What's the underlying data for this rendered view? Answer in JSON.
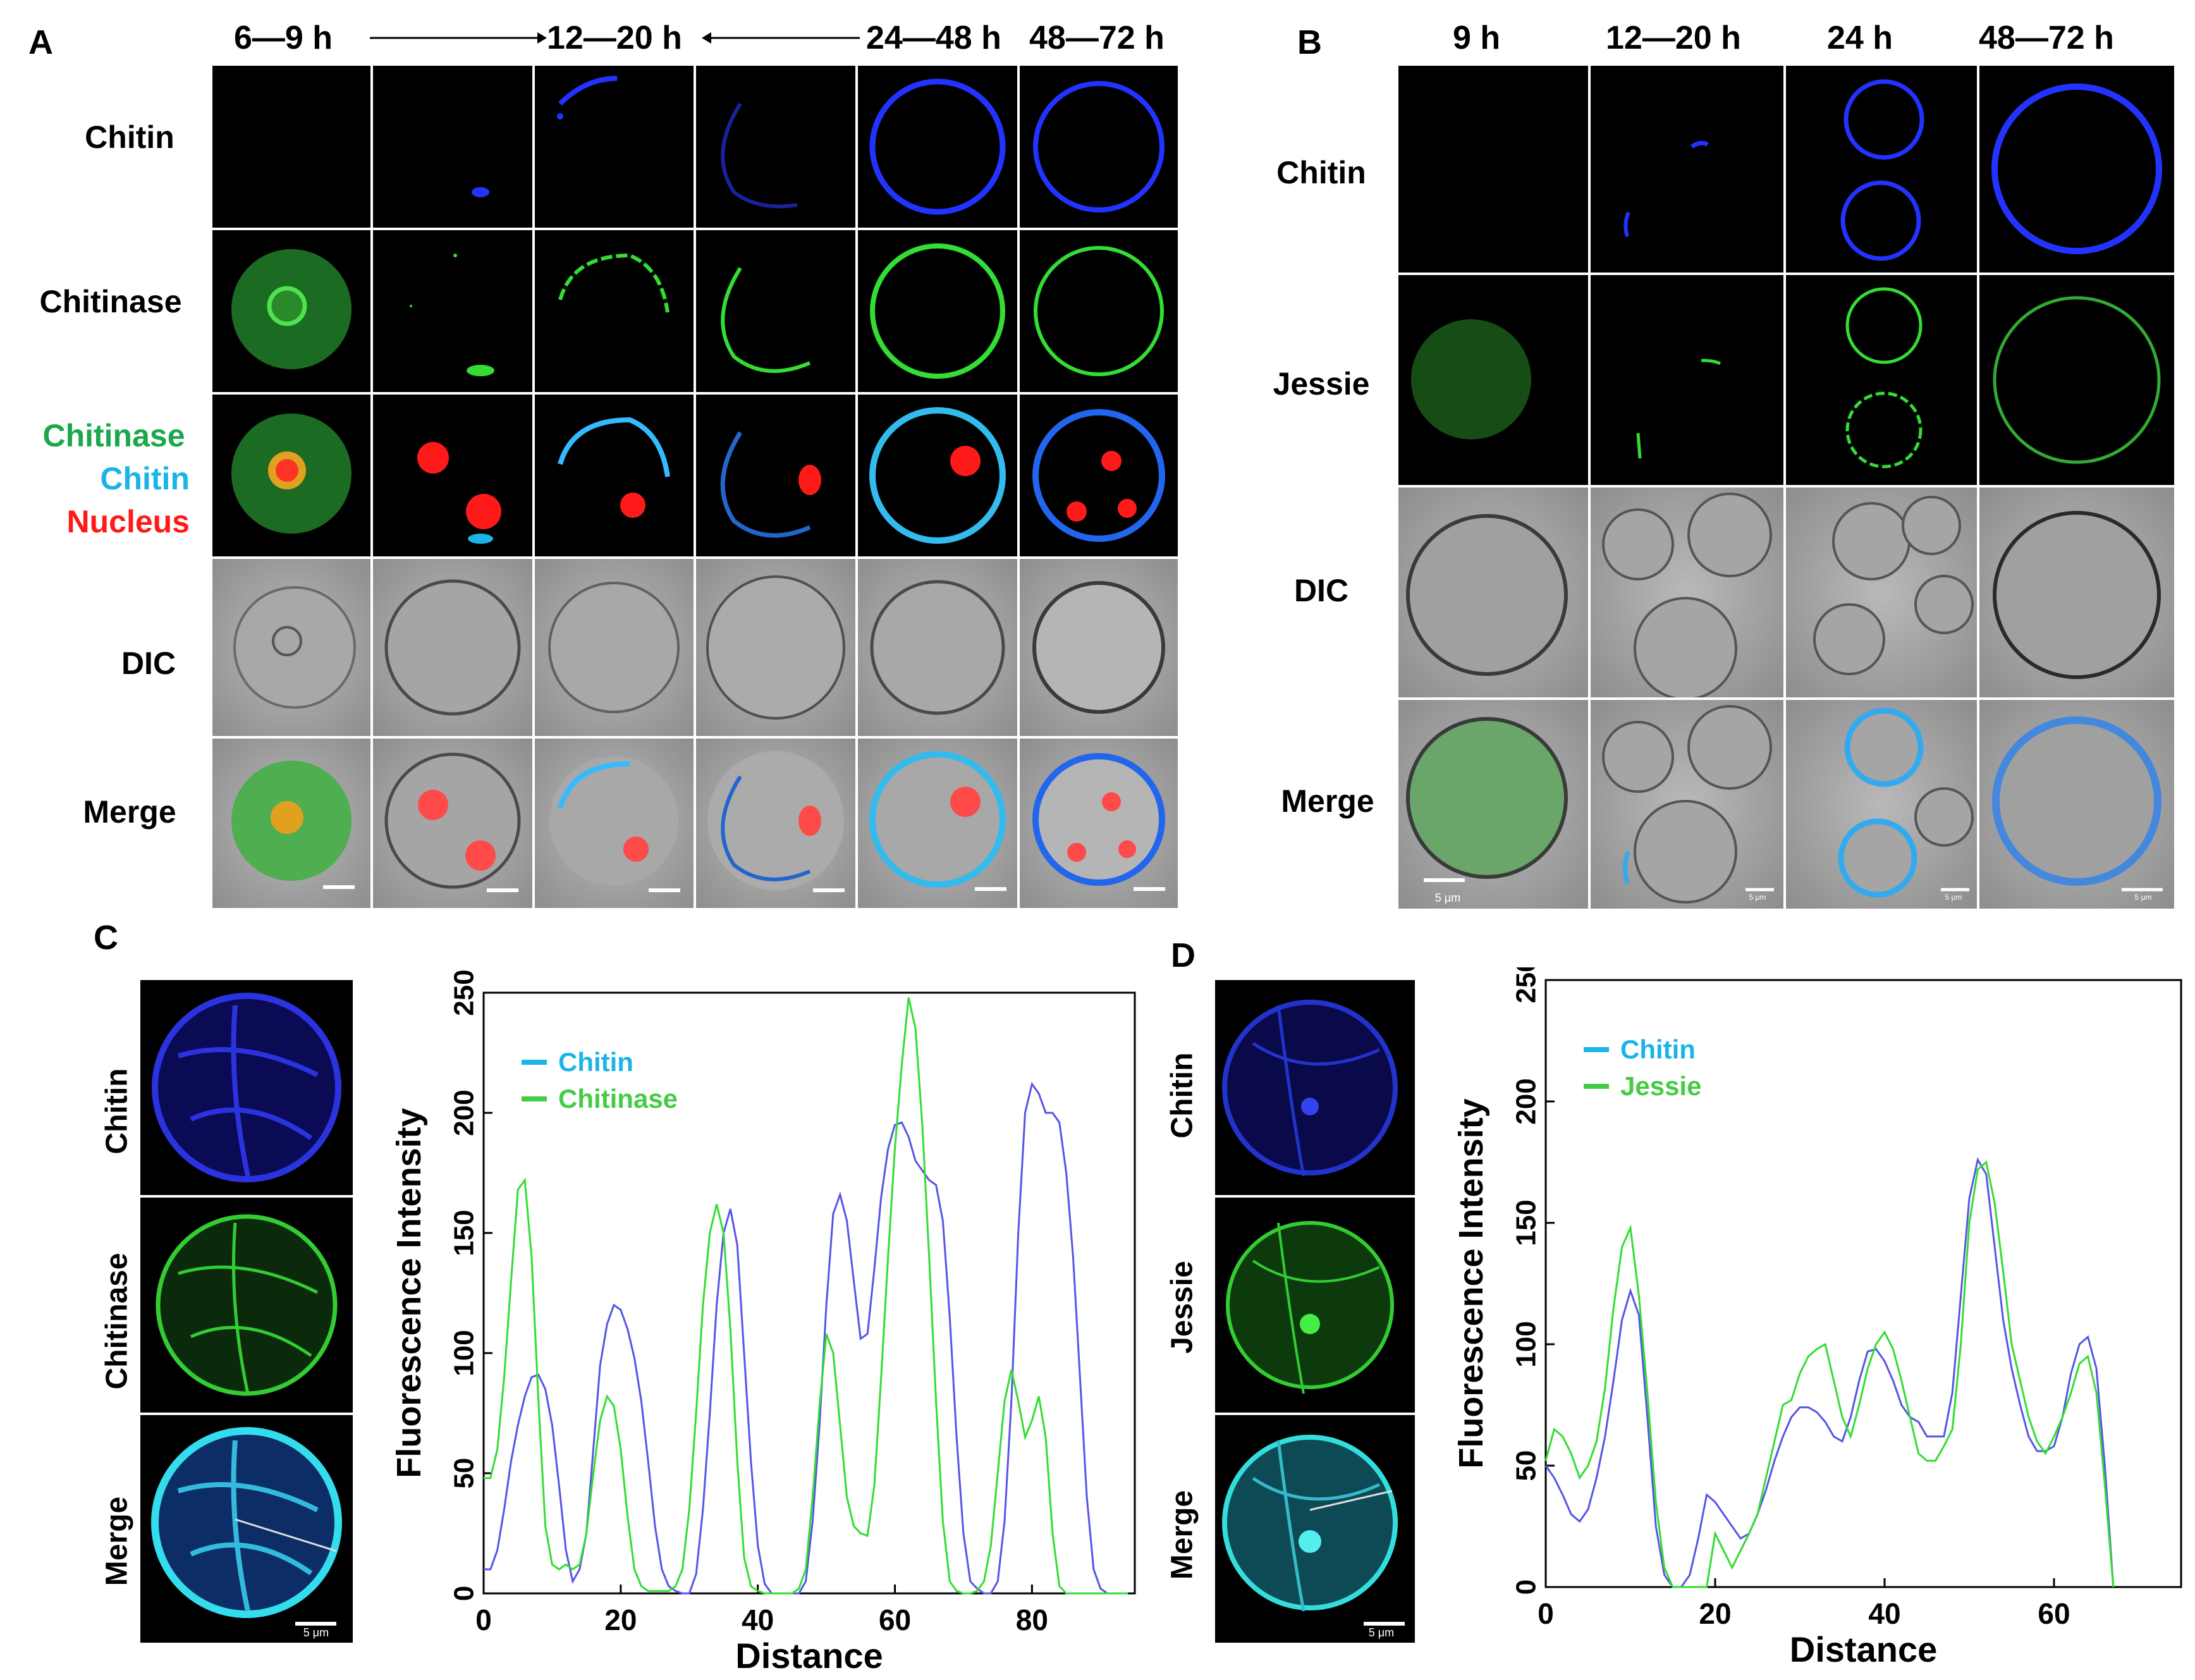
{
  "panelA": {
    "label": "A",
    "headers": [
      "6—9 h",
      "12—20 h",
      "24—48 h",
      "48—72 h"
    ],
    "rows": [
      "Chitin",
      "Chitinase",
      "DIC",
      "Merge"
    ],
    "legend_lines": [
      "Chitinase",
      "Chitin",
      "Nucleus"
    ],
    "colors": {
      "chitinase": "#1aa84a",
      "chitin": "#1ab4e6",
      "nucleus": "#ff1a1a"
    }
  },
  "panelB": {
    "label": "B",
    "headers": [
      "9 h",
      "12—20 h",
      "24 h",
      "48—72 h"
    ],
    "rows": [
      "Chitin",
      "Jessie",
      "DIC",
      "Merge"
    ],
    "scales": [
      "5 μm",
      "5 μm",
      "5 μm",
      "5 μm"
    ]
  },
  "panelC": {
    "label": "C",
    "image_labels": [
      "Chitin",
      "Chitinase",
      "Merge"
    ],
    "scale": "5 μm"
  },
  "panelD": {
    "label": "D",
    "image_labels": [
      "Chitin",
      "Jessie",
      "Merge"
    ],
    "scale": "5 μm"
  },
  "chart_data": [
    {
      "type": "line",
      "panel": "C",
      "xlabel": "Distance",
      "ylabel": "Fluorescence Intensity",
      "xlim": [
        0,
        95
      ],
      "ylim": [
        0,
        250
      ],
      "xticks": [
        0,
        20,
        40,
        60,
        80
      ],
      "yticks": [
        0,
        50,
        100,
        150,
        200,
        250
      ],
      "legend_position": "top-left",
      "series": [
        {
          "name": "Chitin",
          "color": "#5555e6",
          "x": [
            0,
            1,
            2,
            3,
            4,
            5,
            6,
            7,
            8,
            9,
            10,
            11,
            12,
            13,
            14,
            15,
            16,
            17,
            18,
            19,
            20,
            21,
            22,
            23,
            24,
            25,
            26,
            27,
            28,
            29,
            30,
            31,
            32,
            33,
            34,
            35,
            36,
            37,
            38,
            39,
            40,
            41,
            42,
            43,
            44,
            45,
            46,
            47,
            48,
            49,
            50,
            51,
            52,
            53,
            54,
            55,
            56,
            57,
            58,
            59,
            60,
            61,
            62,
            63,
            64,
            65,
            66,
            67,
            68,
            69,
            70,
            71,
            72,
            73,
            74,
            75,
            76,
            77,
            78,
            79,
            80,
            81,
            82,
            83,
            84,
            85,
            86,
            87,
            88,
            89,
            90,
            91,
            92,
            93,
            94
          ],
          "y": [
            10,
            10,
            18,
            35,
            55,
            70,
            82,
            90,
            91,
            85,
            70,
            45,
            18,
            5,
            10,
            25,
            60,
            95,
            112,
            120,
            118,
            110,
            98,
            80,
            55,
            28,
            10,
            3,
            1,
            0,
            0,
            8,
            35,
            75,
            120,
            150,
            160,
            145,
            100,
            55,
            20,
            4,
            0,
            0,
            0,
            0,
            0,
            5,
            30,
            70,
            120,
            158,
            166,
            155,
            130,
            106,
            108,
            135,
            165,
            185,
            195,
            196,
            190,
            180,
            176,
            172,
            170,
            155,
            115,
            65,
            25,
            5,
            2,
            0,
            0,
            5,
            30,
            80,
            150,
            200,
            212,
            208,
            200,
            200,
            196,
            175,
            140,
            90,
            40,
            10,
            2,
            0,
            0,
            0,
            0
          ]
        },
        {
          "name": "Chitinase",
          "color": "#33dd33",
          "x": [
            0,
            1,
            2,
            3,
            4,
            5,
            6,
            7,
            8,
            9,
            10,
            11,
            12,
            13,
            14,
            15,
            16,
            17,
            18,
            19,
            20,
            21,
            22,
            23,
            24,
            25,
            26,
            27,
            28,
            29,
            30,
            31,
            32,
            33,
            34,
            35,
            36,
            37,
            38,
            39,
            40,
            41,
            42,
            43,
            44,
            45,
            46,
            47,
            48,
            49,
            50,
            51,
            52,
            53,
            54,
            55,
            56,
            57,
            58,
            59,
            60,
            61,
            62,
            63,
            64,
            65,
            66,
            67,
            68,
            69,
            70,
            71,
            72,
            73,
            74,
            75,
            76,
            77,
            78,
            79,
            80,
            81,
            82,
            83,
            84,
            85,
            86,
            87,
            88,
            89,
            90,
            91,
            92,
            93,
            94
          ],
          "y": [
            48,
            48,
            60,
            90,
            130,
            168,
            172,
            140,
            80,
            28,
            12,
            10,
            12,
            10,
            12,
            25,
            50,
            72,
            82,
            78,
            60,
            32,
            10,
            3,
            1,
            1,
            1,
            1,
            3,
            10,
            35,
            75,
            120,
            150,
            162,
            150,
            110,
            55,
            15,
            3,
            1,
            0,
            0,
            0,
            0,
            0,
            2,
            10,
            40,
            78,
            108,
            100,
            70,
            40,
            28,
            25,
            24,
            45,
            90,
            140,
            185,
            220,
            248,
            235,
            195,
            140,
            80,
            30,
            5,
            1,
            0,
            0,
            1,
            5,
            20,
            50,
            80,
            93,
            80,
            65,
            72,
            82,
            65,
            25,
            3,
            0,
            0,
            0,
            0,
            0,
            0,
            0,
            0,
            0,
            0
          ]
        }
      ]
    },
    {
      "type": "line",
      "panel": "D",
      "xlabel": "Distance",
      "ylabel": "Fluorescence Intensity",
      "xlim": [
        0,
        75
      ],
      "ylim": [
        0,
        250
      ],
      "xticks": [
        0,
        20,
        40,
        60
      ],
      "yticks": [
        0,
        50,
        100,
        150,
        200,
        250
      ],
      "legend_position": "top-left",
      "series": [
        {
          "name": "Chitin",
          "color": "#5555e6",
          "x": [
            0,
            1,
            2,
            3,
            4,
            5,
            6,
            7,
            8,
            9,
            10,
            11,
            12,
            13,
            14,
            15,
            16,
            17,
            18,
            19,
            20,
            21,
            22,
            23,
            24,
            25,
            26,
            27,
            28,
            29,
            30,
            31,
            32,
            33,
            34,
            35,
            36,
            37,
            38,
            39,
            40,
            41,
            42,
            43,
            44,
            45,
            46,
            47,
            48,
            49,
            50,
            51,
            52,
            53,
            54,
            55,
            56,
            57,
            58,
            59,
            60,
            61,
            62,
            63,
            64,
            65,
            66,
            67
          ],
          "y": [
            50,
            45,
            38,
            30,
            27,
            32,
            45,
            62,
            85,
            110,
            122,
            112,
            70,
            25,
            5,
            0,
            0,
            5,
            20,
            38,
            35,
            30,
            25,
            20,
            22,
            30,
            40,
            52,
            62,
            70,
            74,
            74,
            72,
            68,
            62,
            60,
            70,
            85,
            97,
            98,
            93,
            85,
            75,
            70,
            68,
            62,
            62,
            62,
            80,
            120,
            160,
            176,
            170,
            140,
            110,
            90,
            75,
            62,
            56,
            56,
            58,
            70,
            88,
            100,
            103,
            90,
            50,
            0
          ]
        },
        {
          "name": "Jessie",
          "color": "#33dd33",
          "x": [
            0,
            1,
            2,
            3,
            4,
            5,
            6,
            7,
            8,
            9,
            10,
            11,
            12,
            13,
            14,
            15,
            16,
            17,
            18,
            19,
            20,
            21,
            22,
            23,
            24,
            25,
            26,
            27,
            28,
            29,
            30,
            31,
            32,
            33,
            34,
            35,
            36,
            37,
            38,
            39,
            40,
            41,
            42,
            43,
            44,
            45,
            46,
            47,
            48,
            49,
            50,
            51,
            52,
            53,
            54,
            55,
            56,
            57,
            58,
            59,
            60,
            61,
            62,
            63,
            64,
            65,
            66,
            67
          ],
          "y": [
            52,
            65,
            62,
            55,
            45,
            50,
            60,
            82,
            115,
            140,
            148,
            120,
            80,
            35,
            8,
            0,
            0,
            0,
            0,
            0,
            22,
            15,
            8,
            15,
            22,
            30,
            45,
            60,
            75,
            77,
            88,
            95,
            98,
            100,
            85,
            70,
            62,
            75,
            90,
            100,
            105,
            98,
            85,
            70,
            55,
            52,
            52,
            58,
            65,
            100,
            150,
            172,
            175,
            158,
            130,
            100,
            85,
            70,
            60,
            55,
            62,
            70,
            80,
            92,
            95,
            80,
            42,
            0
          ]
        }
      ]
    }
  ]
}
